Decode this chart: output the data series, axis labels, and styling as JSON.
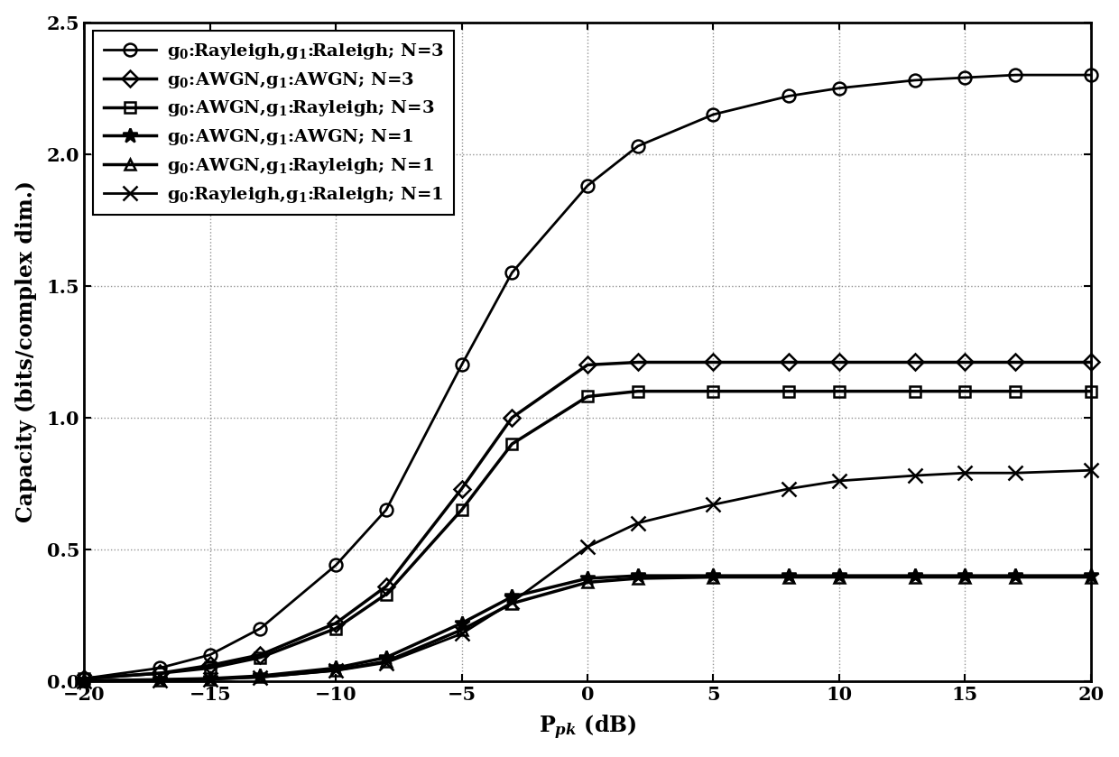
{
  "x": [
    -20,
    -17,
    -15,
    -13,
    -10,
    -8,
    -5,
    -3,
    0,
    2,
    5,
    8,
    10,
    13,
    15,
    17,
    20
  ],
  "series": [
    {
      "label": "g$_0$:Rayleigh,g$_1$:Raleigh; N=3",
      "marker": "o",
      "color": "#000000",
      "linewidth": 2.0,
      "markersize": 10,
      "markerfacecolor": "none",
      "y": [
        0.01,
        0.05,
        0.1,
        0.2,
        0.44,
        0.65,
        1.2,
        1.55,
        1.88,
        2.03,
        2.15,
        2.22,
        2.25,
        2.28,
        2.29,
        2.3,
        2.3
      ]
    },
    {
      "label": "g$_0$:AWGN,g$_1$:AWGN; N=3",
      "marker": "D",
      "color": "#000000",
      "linewidth": 2.5,
      "markersize": 9,
      "markerfacecolor": "none",
      "y": [
        0.01,
        0.03,
        0.06,
        0.1,
        0.22,
        0.36,
        0.73,
        1.0,
        1.2,
        1.21,
        1.21,
        1.21,
        1.21,
        1.21,
        1.21,
        1.21,
        1.21
      ]
    },
    {
      "label": "g$_0$:AWGN,g$_1$:Rayleigh; N=3",
      "marker": "s",
      "color": "#000000",
      "linewidth": 2.5,
      "markersize": 9,
      "markerfacecolor": "none",
      "y": [
        0.01,
        0.03,
        0.05,
        0.09,
        0.2,
        0.33,
        0.65,
        0.9,
        1.08,
        1.1,
        1.1,
        1.1,
        1.1,
        1.1,
        1.1,
        1.1,
        1.1
      ]
    },
    {
      "label": "g$_0$:AWGN,g$_1$:AWGN; N=1",
      "marker": "*",
      "color": "#000000",
      "linewidth": 2.5,
      "markersize": 12,
      "markerfacecolor": "#000000",
      "y": [
        0.002,
        0.006,
        0.01,
        0.02,
        0.05,
        0.09,
        0.22,
        0.32,
        0.39,
        0.4,
        0.4,
        0.4,
        0.4,
        0.4,
        0.4,
        0.4,
        0.4
      ]
    },
    {
      "label": "g$_0$:AWGN,g$_1$:Rayleigh; N=1",
      "marker": "^",
      "color": "#000000",
      "linewidth": 2.5,
      "markersize": 9,
      "markerfacecolor": "none",
      "y": [
        0.001,
        0.004,
        0.008,
        0.016,
        0.042,
        0.075,
        0.195,
        0.295,
        0.375,
        0.39,
        0.395,
        0.395,
        0.395,
        0.395,
        0.395,
        0.395,
        0.395
      ]
    },
    {
      "label": "g$_0$:Rayleigh,g$_1$:Raleigh; N=1",
      "marker": "x",
      "color": "#000000",
      "linewidth": 2.0,
      "markersize": 11,
      "markerfacecolor": "#000000",
      "y": [
        0.001,
        0.004,
        0.008,
        0.015,
        0.04,
        0.07,
        0.18,
        0.3,
        0.51,
        0.6,
        0.67,
        0.73,
        0.76,
        0.78,
        0.79,
        0.79,
        0.8
      ]
    }
  ],
  "xlabel": "P$_{pk}$ (dB)",
  "ylabel": "Capacity (bits/complex dim.)",
  "xlim": [
    -20,
    20
  ],
  "ylim": [
    0,
    2.5
  ],
  "xticks": [
    -20,
    -15,
    -10,
    -5,
    0,
    5,
    10,
    15,
    20
  ],
  "yticks": [
    0,
    0.5,
    1.0,
    1.5,
    2.0,
    2.5
  ],
  "grid_linestyle": ":",
  "grid_color": "#888888",
  "background_color": "#ffffff",
  "legend_fontsize": 14,
  "axis_fontsize": 17,
  "tick_fontsize": 15
}
